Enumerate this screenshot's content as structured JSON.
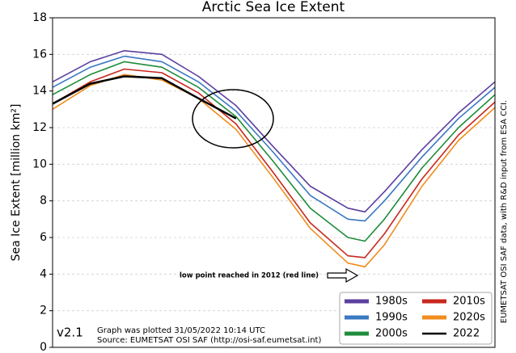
{
  "chart_data": {
    "type": "line",
    "title": "Arctic Sea Ice Extent",
    "ylabel": "Sea Ice Extent [million km²]",
    "x": [
      1,
      32,
      60,
      91,
      121,
      152,
      182,
      213,
      244,
      258,
      274,
      305,
      335,
      365
    ],
    "xlim": [
      1,
      365
    ],
    "ylim": [
      0,
      18
    ],
    "yticks": [
      0,
      2,
      4,
      6,
      8,
      10,
      12,
      14,
      16,
      18
    ],
    "grid": true,
    "legend": "lower right",
    "series": [
      {
        "name": "1980s",
        "color": "#5b3fa0",
        "values": [
          14.5,
          15.6,
          16.2,
          16.0,
          14.8,
          13.2,
          11.0,
          8.8,
          7.6,
          7.4,
          8.5,
          10.8,
          12.8,
          14.5
        ]
      },
      {
        "name": "1990s",
        "color": "#3a78c2",
        "values": [
          14.2,
          15.3,
          15.9,
          15.6,
          14.5,
          12.9,
          10.7,
          8.3,
          7.0,
          6.9,
          8.0,
          10.4,
          12.5,
          14.2
        ]
      },
      {
        "name": "2000s",
        "color": "#1e8c3a",
        "values": [
          13.8,
          14.9,
          15.6,
          15.3,
          14.2,
          12.6,
          10.2,
          7.6,
          6.0,
          5.8,
          7.0,
          9.8,
          12.0,
          13.8
        ]
      },
      {
        "name": "2010s",
        "color": "#c8281e",
        "values": [
          13.3,
          14.5,
          15.2,
          15.0,
          13.9,
          12.2,
          9.6,
          6.8,
          5.0,
          4.9,
          6.2,
          9.2,
          11.6,
          13.4
        ]
      },
      {
        "name": "2020s",
        "color": "#f08c1e",
        "values": [
          13.0,
          14.3,
          14.9,
          14.6,
          13.6,
          11.9,
          9.3,
          6.5,
          4.6,
          4.4,
          5.6,
          8.8,
          11.3,
          13.1
        ]
      },
      {
        "name": "2022",
        "color": "#000000",
        "values": [
          13.3,
          14.4,
          14.8,
          14.7,
          13.6,
          12.5,
          null,
          null,
          null,
          null,
          null,
          null,
          null,
          null
        ]
      }
    ],
    "annotations": {
      "low_point": "low point reached in 2012 (red line)",
      "version": "v2.1",
      "plotted": "Graph was plotted 31/05/2022 10:14 UTC",
      "source": "Source: EUMETSAT OSI SAF (http://osi-saf.eumetsat.int)",
      "credit": "EUMETSAT OSI SAF data, with R&D input from ESA CCI."
    }
  }
}
